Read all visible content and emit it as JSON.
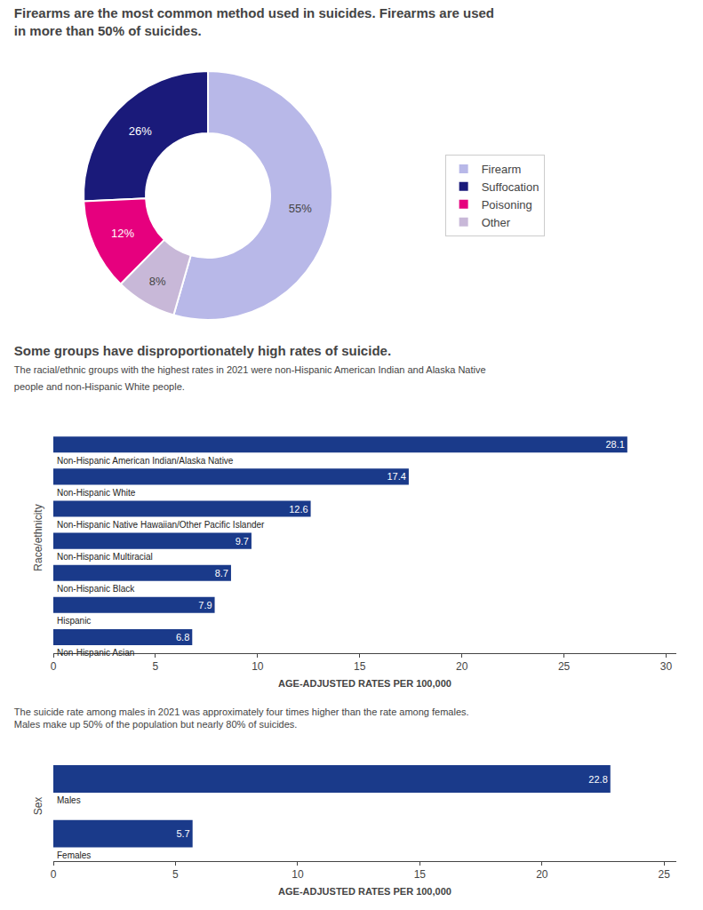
{
  "chart_data": [
    {
      "type": "pie",
      "title": "Firearms are the most common method used in suicides. Firearms are used\nin more than 50% of suicides.",
      "categories": [
        "Firearm",
        "Suffocation",
        "Poisoning",
        "Other"
      ],
      "values": [
        55,
        26,
        12,
        8
      ],
      "value_labels": [
        "55%",
        "26%",
        "12%",
        "8%"
      ],
      "colors": [
        "#b8b8e8",
        "#1a1a7a",
        "#e6007e",
        "#c8b8d8"
      ],
      "data_labels": true,
      "legend": "right"
    },
    {
      "type": "bar",
      "orientation": "horizontal",
      "title": "Some groups have disproportionately high rates of suicide.",
      "subtitle": "The racial/ethnic groups with the highest rates in 2021 were non-Hispanic American Indian and Alaska Native\npeople and non-Hispanic White people.",
      "categories": [
        "Non-Hispanic American Indian/Alaska Native",
        "Non-Hispanic White",
        "Non-Hispanic Native Hawaiian/Other Pacific Islander",
        "Non-Hispanic Multiracial",
        "Non-Hispanic Black",
        "Hispanic",
        "Non-Hispanic Asian"
      ],
      "values": [
        28.1,
        17.4,
        12.6,
        9.7,
        8.7,
        7.9,
        6.8
      ],
      "color": "#1a3a8a",
      "xlabel": "AGE-ADJUSTED RATES PER 100,000",
      "ylabel": "Race/ethnicity",
      "xlim": [
        0,
        30.5
      ],
      "xticks": [
        0,
        5,
        10,
        15,
        20,
        25,
        30
      ],
      "grid": false,
      "data_labels": true
    },
    {
      "type": "bar",
      "orientation": "horizontal",
      "title": "The suicide rate among males in 2021 was approximately four times higher than the rate among females.\nMales make up 50% of the population but nearly 80% of suicides.",
      "categories": [
        "Males",
        "Females"
      ],
      "values": [
        22.8,
        5.7
      ],
      "color": "#1a3a8a",
      "xlabel": "AGE-ADJUSTED RATES PER 100,000",
      "ylabel": "Sex",
      "xlim": [
        0,
        25.5
      ],
      "xticks": [
        0,
        5,
        10,
        15,
        20,
        25
      ],
      "grid": false,
      "data_labels": true
    }
  ]
}
